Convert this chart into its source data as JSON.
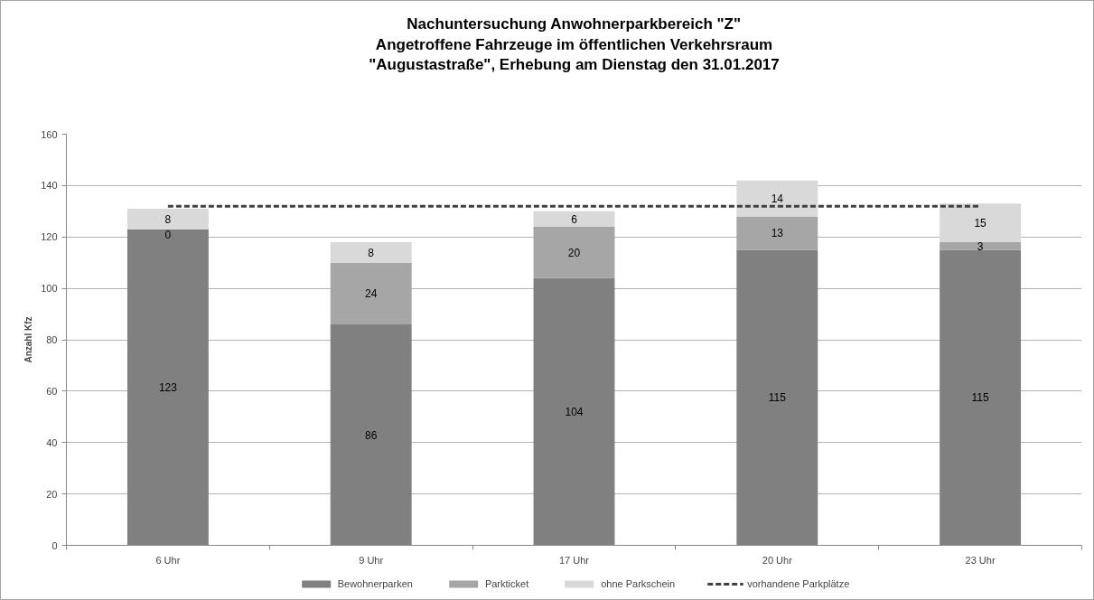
{
  "chart_data": {
    "type": "bar",
    "title": "Nachuntersuchung Anwohnerparkbereich \"Z\"\nAngetroffene Fahrzeuge im öffentlichen Verkehrsraum\n\"Augustastraße\", Erhebung am Dienstag den 31.01.2017",
    "ylabel": "Anzahl Kfz",
    "categories": [
      "6 Uhr",
      "9 Uhr",
      "17 Uhr",
      "20 Uhr",
      "23 Uhr"
    ],
    "stacked": true,
    "series": [
      {
        "name": "Bewohnerparken",
        "color": "#808080",
        "values": [
          123,
          86,
          104,
          115,
          115
        ],
        "value_labels": [
          "123",
          "86",
          "104",
          "115",
          "115"
        ]
      },
      {
        "name": "Parkticket",
        "color": "#a6a6a6",
        "values": [
          0,
          24,
          20,
          13,
          3
        ],
        "value_labels": [
          "0",
          "24",
          "20",
          "13",
          "3"
        ]
      },
      {
        "name": "ohne Parkschein",
        "color": "#d9d9d9",
        "values": [
          8,
          8,
          6,
          14,
          15
        ],
        "value_labels": [
          "8",
          "8",
          "6",
          "14",
          "15"
        ]
      },
      {
        "name": "vorhandene Parkplätze",
        "type": "line",
        "color": "#404040",
        "line_style": "dashed",
        "values": [
          132,
          132,
          132,
          132,
          132
        ]
      }
    ],
    "ylim": [
      0,
      160
    ],
    "yticks": [
      0,
      20,
      40,
      60,
      80,
      100,
      120,
      140,
      160
    ],
    "grid": "y",
    "legend": "bottom"
  }
}
